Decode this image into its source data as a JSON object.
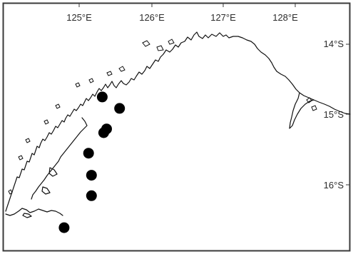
{
  "map": {
    "longitude_labels": [
      "125°E",
      "126°E",
      "127°E",
      "128°E"
    ],
    "latitude_labels": [
      "14°S",
      "15°S",
      "16°S"
    ],
    "extent": {
      "lon": [
        124.15,
        128.95
      ],
      "lat": [
        -16.85,
        -13.6
      ]
    },
    "colors": {
      "frame": "#3a3a3a",
      "coastline": "#111111",
      "points": "#000000",
      "background": "#ffffff"
    },
    "sample_points": [
      {
        "lon": 125.52,
        "lat": -14.83
      },
      {
        "lon": 125.76,
        "lat": -14.98
      },
      {
        "lon": 125.58,
        "lat": -15.25
      },
      {
        "lon": 125.54,
        "lat": -15.3
      },
      {
        "lon": 125.33,
        "lat": -15.57
      },
      {
        "lon": 125.37,
        "lat": -15.86
      },
      {
        "lon": 125.37,
        "lat": -16.13
      },
      {
        "lon": 124.99,
        "lat": -16.55
      }
    ]
  }
}
